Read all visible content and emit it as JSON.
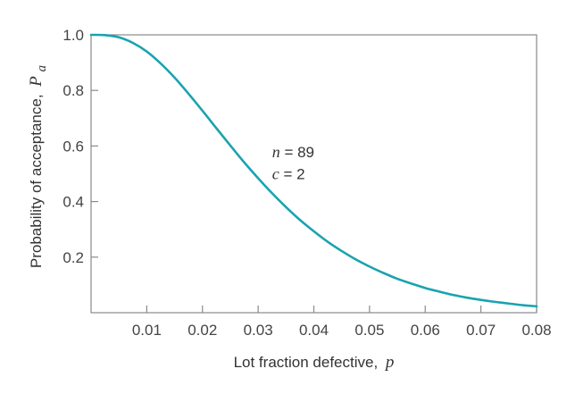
{
  "chart_data": {
    "type": "line",
    "xlabel": "Lot fraction defective,",
    "xlabel_var": "p",
    "ylabel": "Probability of acceptance,",
    "ylabel_var": "P",
    "ylabel_sub": "a",
    "xlim": [
      0,
      0.08
    ],
    "ylim": [
      0,
      1.0
    ],
    "x_ticks": [
      0.01,
      0.02,
      0.03,
      0.04,
      0.05,
      0.06,
      0.07,
      0.08
    ],
    "x_tick_labels": [
      "0.01",
      "0.02",
      "0.03",
      "0.04",
      "0.05",
      "0.06",
      "0.07",
      "0.08"
    ],
    "y_ticks": [
      0.2,
      0.4,
      0.6,
      0.8,
      1.0
    ],
    "y_tick_labels": [
      "0.2",
      "0.4",
      "0.6",
      "0.8",
      "1.0"
    ],
    "grid": false,
    "series": [
      {
        "color": "#1aa3b0",
        "x": [
          0,
          0.0025,
          0.005,
          0.0075,
          0.01,
          0.0125,
          0.015,
          0.0175,
          0.02,
          0.0225,
          0.025,
          0.0275,
          0.03,
          0.0325,
          0.035,
          0.0375,
          0.04,
          0.0425,
          0.045,
          0.0475,
          0.05,
          0.0525,
          0.055,
          0.0575,
          0.06,
          0.0625,
          0.065,
          0.0675,
          0.07,
          0.0725,
          0.075,
          0.0775,
          0.08
        ],
        "y": [
          1.0,
          0.999,
          0.991,
          0.971,
          0.94,
          0.897,
          0.846,
          0.788,
          0.727,
          0.664,
          0.602,
          0.541,
          0.484,
          0.43,
          0.38,
          0.334,
          0.293,
          0.255,
          0.222,
          0.192,
          0.166,
          0.143,
          0.122,
          0.105,
          0.089,
          0.076,
          0.064,
          0.054,
          0.046,
          0.039,
          0.033,
          0.027,
          0.023
        ]
      }
    ],
    "annotations": [
      {
        "var": "n",
        "text": " = 89",
        "x": 0.0325,
        "y": 0.56
      },
      {
        "var": "c",
        "text": " = 2",
        "x": 0.0325,
        "y": 0.48
      }
    ]
  }
}
